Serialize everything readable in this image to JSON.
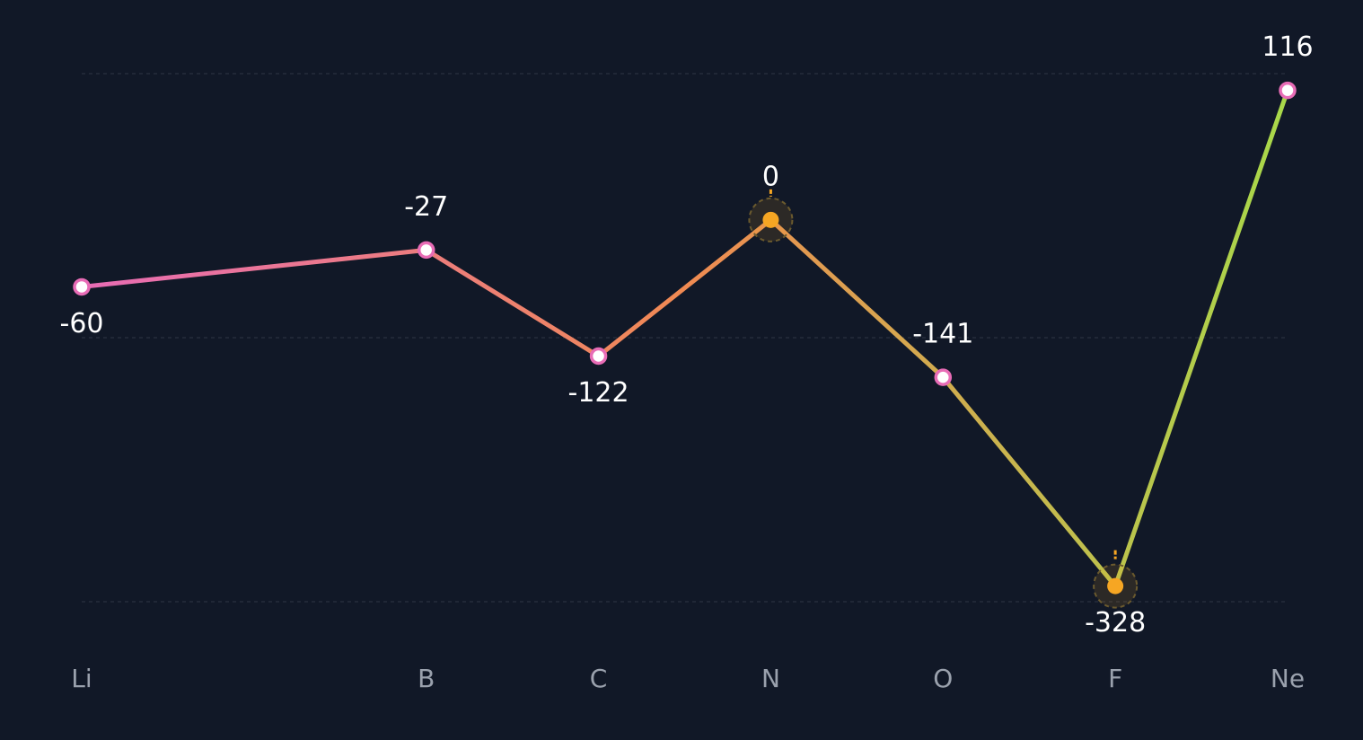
{
  "chart_data": {
    "type": "line",
    "x": [
      3,
      5,
      6,
      7,
      8,
      9,
      10
    ],
    "values": [
      -60,
      -27,
      -122,
      0,
      -141,
      -328,
      116
    ],
    "xlim": [
      3,
      10
    ],
    "xticks": [
      {
        "value": 3,
        "label": "Li"
      },
      {
        "value": 5,
        "label": "B"
      },
      {
        "value": 6,
        "label": "C"
      },
      {
        "value": 7,
        "label": "N"
      },
      {
        "value": 8,
        "label": "O"
      },
      {
        "value": 9,
        "label": "F"
      },
      {
        "value": 10,
        "label": "Ne"
      }
    ],
    "ylim": [
      -342,
      131
    ],
    "yticks": [
      -342,
      -105.5,
      131
    ],
    "grid": true,
    "gradient": [
      "#e86cb6",
      "#f08a52",
      "#a8d94a"
    ],
    "marker_color": "#e86cb6",
    "highlight": [
      false,
      false,
      false,
      true,
      false,
      true,
      false
    ],
    "highlight_color": "#f6a623"
  }
}
